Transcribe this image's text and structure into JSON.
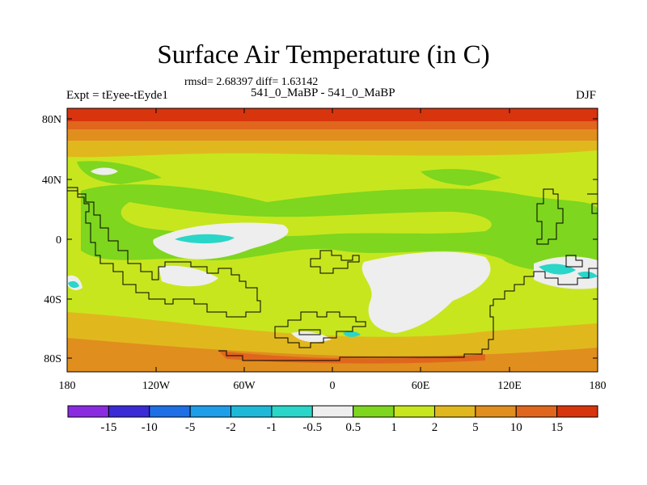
{
  "title": "Surface Air Temperature (in C)",
  "stats": "rmsd= 2.68397 diff= 1.63142",
  "left_label": "Expt = tEyee-tEyde1",
  "center_label": "541_0_MaBP - 541_0_MaBP",
  "right_label": "DJF",
  "lat_ticks": [
    "80N",
    "40N",
    "0",
    "40S",
    "80S"
  ],
  "lon_ticks": [
    "180",
    "120W",
    "60W",
    "0",
    "60E",
    "120E",
    "180"
  ],
  "colorbar": {
    "labels": [
      "-15",
      "-10",
      "-5",
      "-2",
      "-1",
      "-0.5",
      "0.5",
      "1",
      "2",
      "5",
      "10",
      "15"
    ],
    "colors": [
      "#8a2be2",
      "#3a2bd6",
      "#1e6fe6",
      "#1e9ee8",
      "#1eb9d8",
      "#2ad6c8",
      "#eeeeee",
      "#7ed61e",
      "#c8e61e",
      "#e0b81e",
      "#e08e1e",
      "#e0661e",
      "#d8340e"
    ]
  },
  "chart_data": {
    "type": "heatmap",
    "title": "Surface Air Temperature (in C)",
    "x_range": [
      -180,
      180
    ],
    "y_range": [
      -90,
      90
    ],
    "x_ticks": [
      -180,
      -120,
      -60,
      0,
      60,
      120,
      180
    ],
    "y_ticks": [
      80,
      40,
      0,
      -40,
      -80
    ],
    "levels": [
      -15,
      -10,
      -5,
      -2,
      -1,
      -0.5,
      0.5,
      1,
      2,
      5,
      10,
      15
    ],
    "zonal_bands": [
      {
        "lat_from": 90,
        "lat_to": 80,
        "category": ">15"
      },
      {
        "lat_from": 80,
        "lat_to": 72,
        "category": "10 to 15"
      },
      {
        "lat_from": 72,
        "lat_to": 62,
        "category": "5 to 10"
      },
      {
        "lat_from": 62,
        "lat_to": 50,
        "category": "2 to 5"
      },
      {
        "lat_from": 50,
        "lat_to": 30,
        "category": "1 to 2"
      },
      {
        "lat_from": 30,
        "lat_to": -40,
        "category": "1 to 2"
      },
      {
        "lat_from": -40,
        "lat_to": -62,
        "category": "2 to 5"
      },
      {
        "lat_from": -62,
        "lat_to": -90,
        "category": "5 to 10"
      }
    ]
  }
}
